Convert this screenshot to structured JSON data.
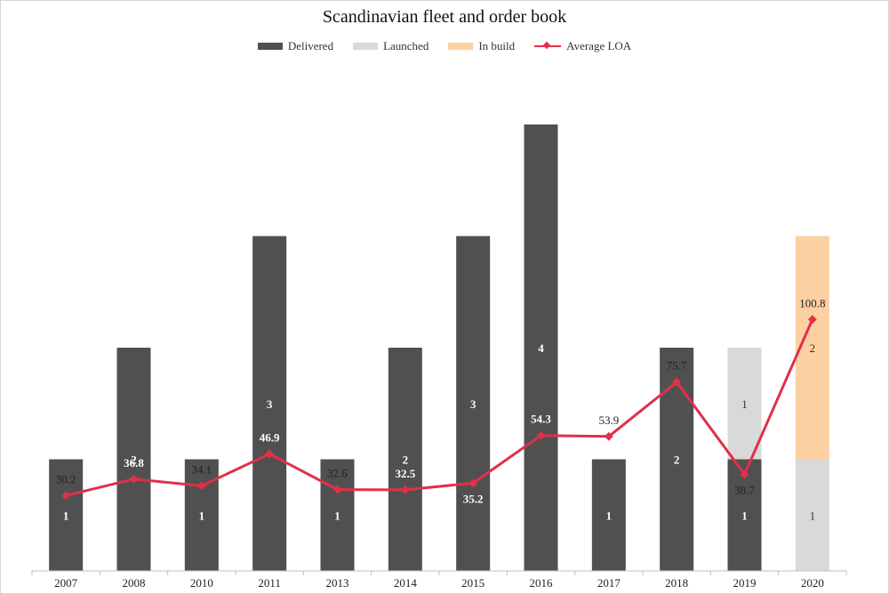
{
  "chart_data": {
    "type": "bar+line",
    "title": "Scandinavian fleet and order book",
    "categories": [
      "2007",
      "2008",
      "2010",
      "2011",
      "2013",
      "2014",
      "2015",
      "2016",
      "2017",
      "2018",
      "2019",
      "2020"
    ],
    "bar_series": [
      {
        "name": "Delivered",
        "color": "#505050",
        "values": [
          1,
          2,
          1,
          3,
          1,
          2,
          3,
          4,
          1,
          2,
          1,
          0
        ]
      },
      {
        "name": "Launched",
        "color": "#d9d9d9",
        "values": [
          0,
          0,
          0,
          0,
          0,
          0,
          0,
          0,
          0,
          0,
          1,
          1
        ]
      },
      {
        "name": "In build",
        "color": "#fdd0a2",
        "values": [
          0,
          0,
          0,
          0,
          0,
          0,
          0,
          0,
          0,
          0,
          0,
          2
        ]
      }
    ],
    "line_series": {
      "name": "Average LOA",
      "color": "#e0304a",
      "values": [
        30.2,
        36.8,
        34.1,
        46.9,
        32.6,
        32.5,
        35.2,
        54.3,
        53.9,
        75.7,
        38.7,
        100.8
      ]
    },
    "bar_axis_max": 4,
    "line_axis_max": 120,
    "legend_position": "top"
  }
}
